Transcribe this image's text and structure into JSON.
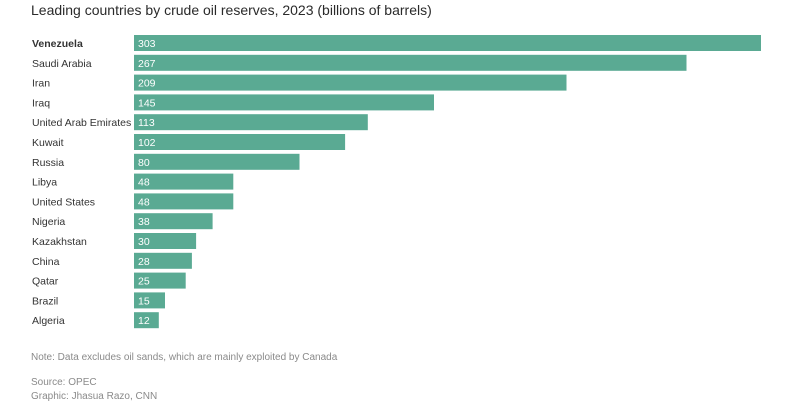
{
  "chart_data": {
    "type": "bar",
    "orientation": "horizontal",
    "title": "Leading countries by crude oil reserves, 2023 (billions of barrels)",
    "categories": [
      "Venezuela",
      "Saudi Arabia",
      "Iran",
      "Iraq",
      "United Arab Emirates",
      "Kuwait",
      "Russia",
      "Libya",
      "United States",
      "Nigeria",
      "Kazakhstan",
      "China",
      "Qatar",
      "Brazil",
      "Algeria"
    ],
    "values": [
      303,
      267,
      209,
      145,
      113,
      102,
      80,
      48,
      48,
      38,
      30,
      28,
      25,
      15,
      12
    ],
    "highlighted_category": "Venezuela",
    "xlim": [
      0,
      303
    ],
    "grid": false,
    "legend": "none",
    "bar_color": "#5aaa93"
  },
  "footer": {
    "note": "Note: Data excludes oil sands, which are mainly exploited by Canada",
    "source": "Source: OPEC",
    "credit": "Graphic: Jhasua Razo, CNN"
  }
}
